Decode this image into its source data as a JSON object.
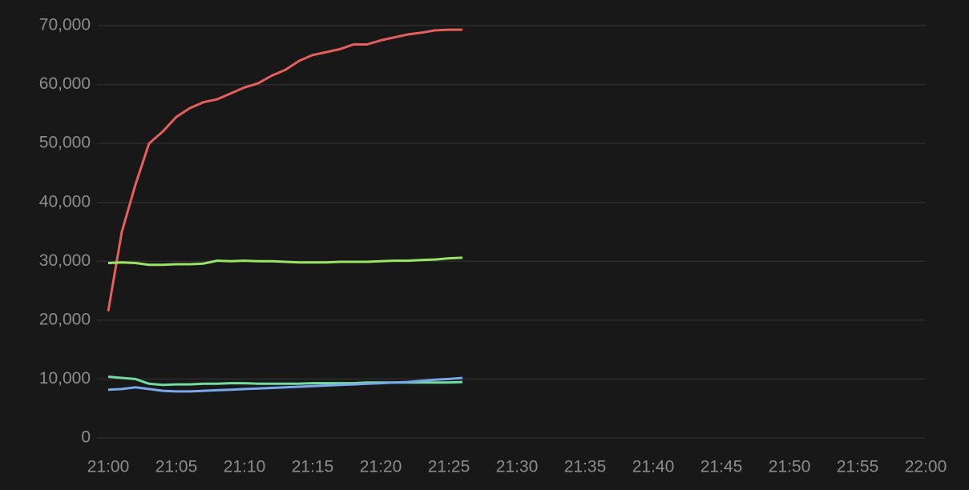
{
  "chart_data": {
    "type": "line",
    "x": [
      "21:00",
      "21:01",
      "21:02",
      "21:03",
      "21:04",
      "21:05",
      "21:06",
      "21:07",
      "21:08",
      "21:09",
      "21:10",
      "21:11",
      "21:12",
      "21:13",
      "21:14",
      "21:15",
      "21:16",
      "21:17",
      "21:18",
      "21:19",
      "21:20",
      "21:21",
      "21:22",
      "21:23",
      "21:24",
      "21:25",
      "21:26"
    ],
    "series": [
      {
        "color": "#e5605c",
        "values": [
          21500,
          35000,
          43000,
          50000,
          52000,
          54500,
          56000,
          57000,
          57500,
          58500,
          59500,
          60200,
          61500,
          62500,
          64000,
          65000,
          65500,
          66000,
          66800,
          66800,
          67500,
          68000,
          68500,
          68800,
          69200,
          69300,
          69300
        ]
      },
      {
        "color": "#9be565",
        "values": [
          29700,
          29800,
          29700,
          29400,
          29400,
          29500,
          29500,
          29600,
          30100,
          30000,
          30100,
          30000,
          30000,
          29900,
          29800,
          29800,
          29800,
          29900,
          29900,
          29900,
          30000,
          30100,
          30100,
          30200,
          30300,
          30500,
          30600
        ]
      },
      {
        "color": "#72dca0",
        "values": [
          10400,
          10200,
          10000,
          9200,
          9000,
          9100,
          9100,
          9200,
          9200,
          9300,
          9300,
          9200,
          9200,
          9200,
          9200,
          9300,
          9300,
          9300,
          9300,
          9400,
          9400,
          9400,
          9400,
          9400,
          9400,
          9400,
          9500
        ]
      },
      {
        "color": "#7aa8ea",
        "values": [
          8200,
          8300,
          8600,
          8300,
          8000,
          7900,
          7900,
          8000,
          8100,
          8200,
          8300,
          8400,
          8500,
          8600,
          8700,
          8800,
          8900,
          9000,
          9100,
          9200,
          9300,
          9400,
          9500,
          9700,
          9900,
          10000,
          10200
        ]
      }
    ],
    "xlim": [
      "21:00",
      "22:00"
    ],
    "xticks": [
      "21:00",
      "21:05",
      "21:10",
      "21:15",
      "21:20",
      "21:25",
      "21:30",
      "21:35",
      "21:40",
      "21:45",
      "21:50",
      "21:55",
      "22:00"
    ],
    "ylim": [
      0,
      70000
    ],
    "yticks": [
      0,
      {
        "value": 10000,
        "label": "10,000"
      },
      {
        "value": 20000,
        "label": "20,000"
      },
      {
        "value": 30000,
        "label": "30,000"
      },
      {
        "value": 40000,
        "label": "40,000"
      },
      {
        "value": 50000,
        "label": "50,000"
      },
      {
        "value": 60000,
        "label": "60,000"
      },
      {
        "value": 70000,
        "label": "70,000"
      }
    ],
    "grid": true
  }
}
